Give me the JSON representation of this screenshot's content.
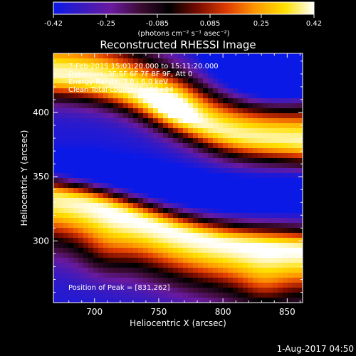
{
  "chart_data": {
    "type": "heatmap",
    "title": "Reconstructed RHESSI Image",
    "xlabel": "Heliocentric X (arcsec)",
    "ylabel": "Heliocentric Y (arcsec)",
    "xlim": [
      668,
      862
    ],
    "ylim": [
      252,
      446
    ],
    "x_ticks": [
      700,
      750,
      800,
      850
    ],
    "y_ticks": [
      300,
      350,
      400
    ],
    "colorbar": {
      "min": -0.42,
      "max": 0.42,
      "tick_values": [
        -0.42,
        -0.25,
        -0.085,
        0.085,
        0.25,
        0.42
      ],
      "tick_labels": [
        "-0.42",
        "-0.25",
        "-0.085",
        "0.085",
        "0.25",
        "0.42"
      ],
      "unit_label": "(photons cm⁻² s⁻¹ asec⁻²)",
      "colors": [
        "#0b19e6",
        "#3a1abf",
        "#6a1a9e",
        "#3d0c34",
        "#000000",
        "#7a0c00",
        "#e03d00",
        "#ff9a00",
        "#ffe000",
        "#ffffff"
      ]
    },
    "annotations": {
      "time_range": "7-Feb-2015 15:01:20.000 to 15:11:20.000",
      "detectors": "Detectors: 3F 5F 6F 7F 8F 9F, Att 0",
      "energy_range": "Energy Range: 3.0 - 6.0 keV",
      "clean_info": "Clean     Total counts: 4.49E+04",
      "peak_position": "Position of Peak = [831,262]"
    },
    "image_features": {
      "background_sign": "negative",
      "upper_bright_band": {
        "x_start": 668,
        "y_start": 430,
        "x_end": 862,
        "y_end": 375
      },
      "lower_bright_band": {
        "x_start": 668,
        "y_start": 330,
        "x_end": 862,
        "y_end": 290
      },
      "blue_core": {
        "x_start": 668,
        "y_start": 350,
        "x_end": 862,
        "y_end": 335
      },
      "top_right_blue": {
        "x": 840,
        "y": 435
      },
      "bright_spots": [
        {
          "x": 708,
          "y": 290
        },
        {
          "x": 762,
          "y": 408
        },
        {
          "x": 831,
          "y": 262
        }
      ]
    }
  },
  "footer": {
    "date_stamp": "1-Aug-2017 04:50"
  }
}
